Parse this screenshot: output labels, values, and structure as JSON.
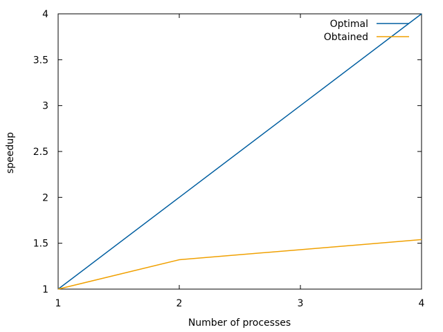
{
  "chart_data": {
    "type": "line",
    "xlabel": "Number of processes",
    "ylabel": "speedup",
    "xlim": [
      1,
      4
    ],
    "ylim": [
      1,
      4
    ],
    "x_ticks": [
      1,
      2,
      3,
      4
    ],
    "y_ticks": [
      1,
      1.5,
      2,
      2.5,
      3,
      3.5,
      4
    ],
    "x_tick_labels": [
      "1",
      "2",
      "3",
      "4"
    ],
    "y_tick_labels": [
      "1",
      "1.5",
      "2",
      "2.5",
      "3",
      "3.5",
      "4"
    ],
    "grid": false,
    "legend_position": "top-right",
    "series": [
      {
        "name": "Optimal",
        "color": "#005ea0",
        "x": [
          1,
          2,
          3,
          4
        ],
        "y": [
          1,
          2,
          3,
          4
        ]
      },
      {
        "name": "Obtained",
        "color": "#f0a000",
        "x": [
          1,
          2,
          3,
          4
        ],
        "y": [
          1,
          1.32,
          1.43,
          1.54
        ]
      }
    ]
  }
}
